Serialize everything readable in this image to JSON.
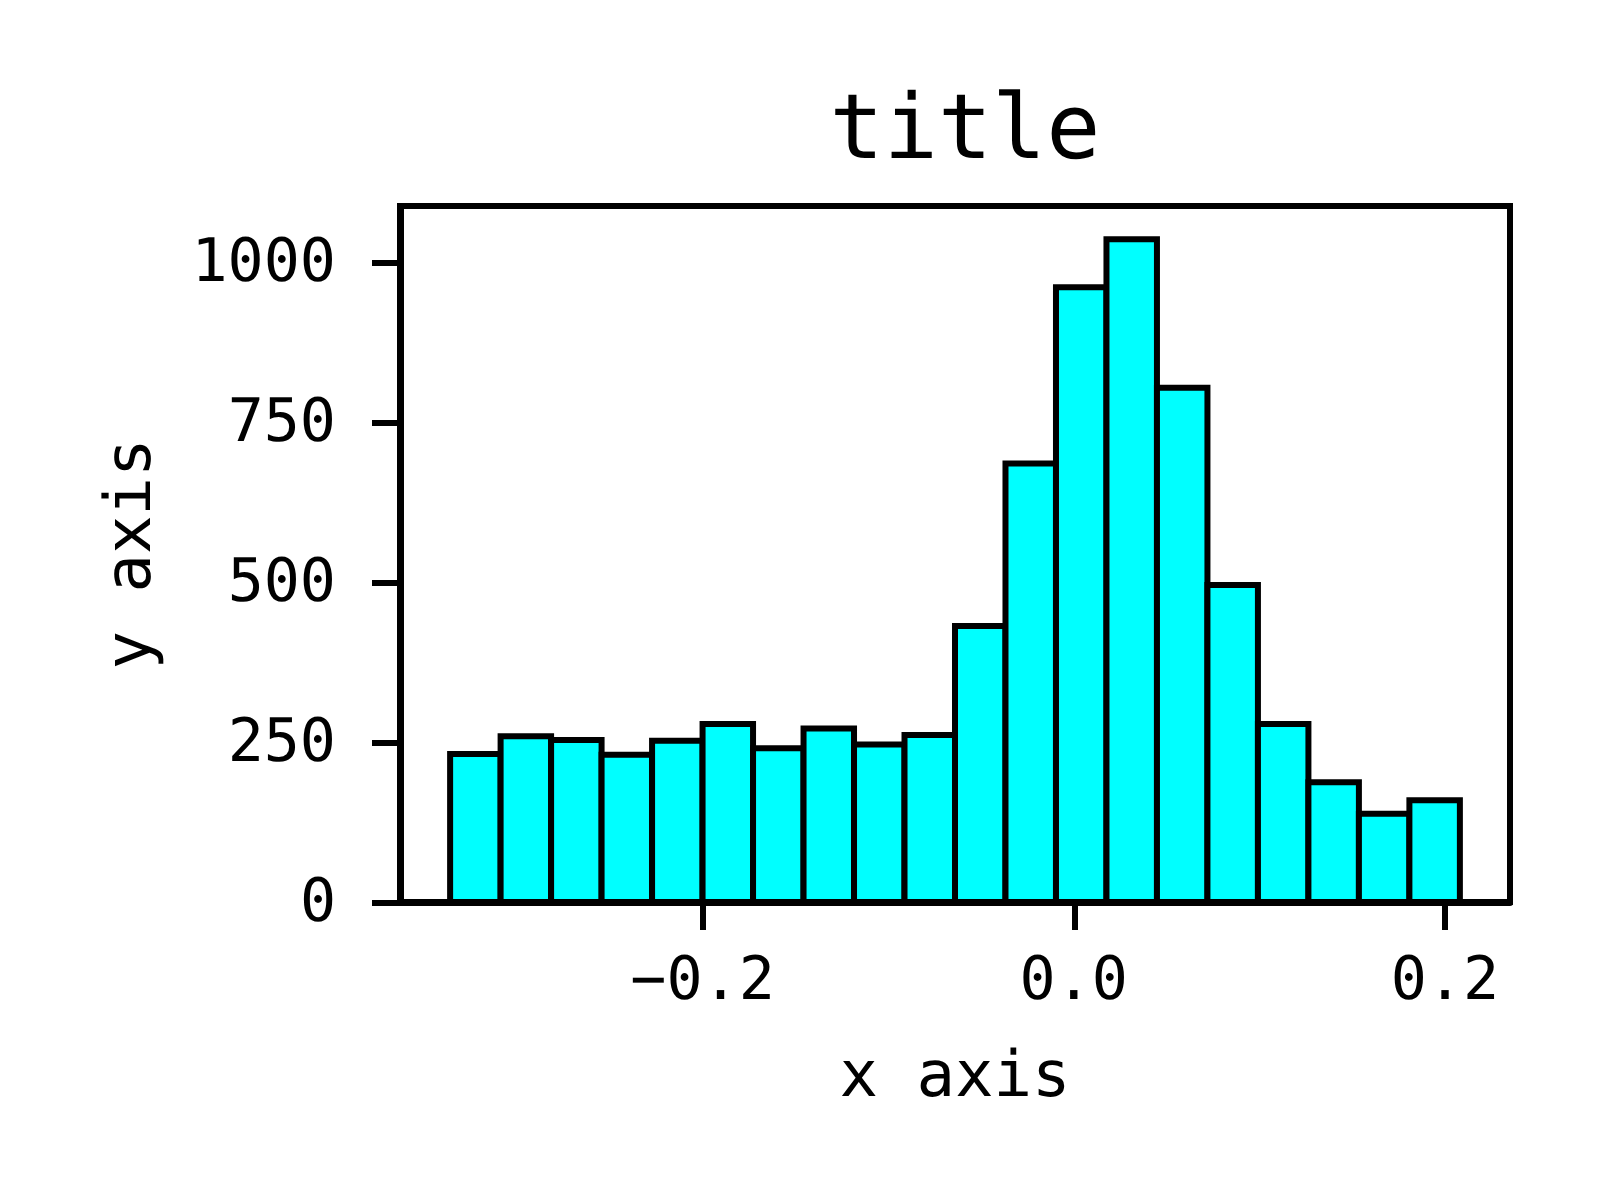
{
  "chart_data": {
    "type": "histogram",
    "title": "title",
    "xlabel": "x axis",
    "ylabel": "y axis",
    "bins": [
      -0.336,
      -0.3088,
      -0.2816,
      -0.2544,
      -0.2272,
      -0.2,
      -0.1728,
      -0.1456,
      -0.1184,
      -0.0912,
      -0.064,
      -0.0368,
      -0.0096,
      0.0176,
      0.0448,
      0.072,
      0.0992,
      0.1264,
      0.1536,
      0.1808,
      0.208
    ],
    "values": [
      231,
      259,
      253,
      230,
      252,
      278,
      240,
      271,
      246,
      261,
      431,
      685,
      960,
      1035,
      803,
      495,
      278,
      187,
      138,
      159
    ],
    "color": "#00ffff",
    "xlim": [
      -0.363,
      0.235
    ],
    "xticks": [
      {
        "value": -0.2,
        "label": "−0.2"
      },
      {
        "value": 0,
        "label": "0.0"
      },
      0.2
    ],
    "ylim": [
      0,
      1087
    ],
    "yticks": [
      0,
      250,
      500,
      750,
      1000
    ]
  }
}
